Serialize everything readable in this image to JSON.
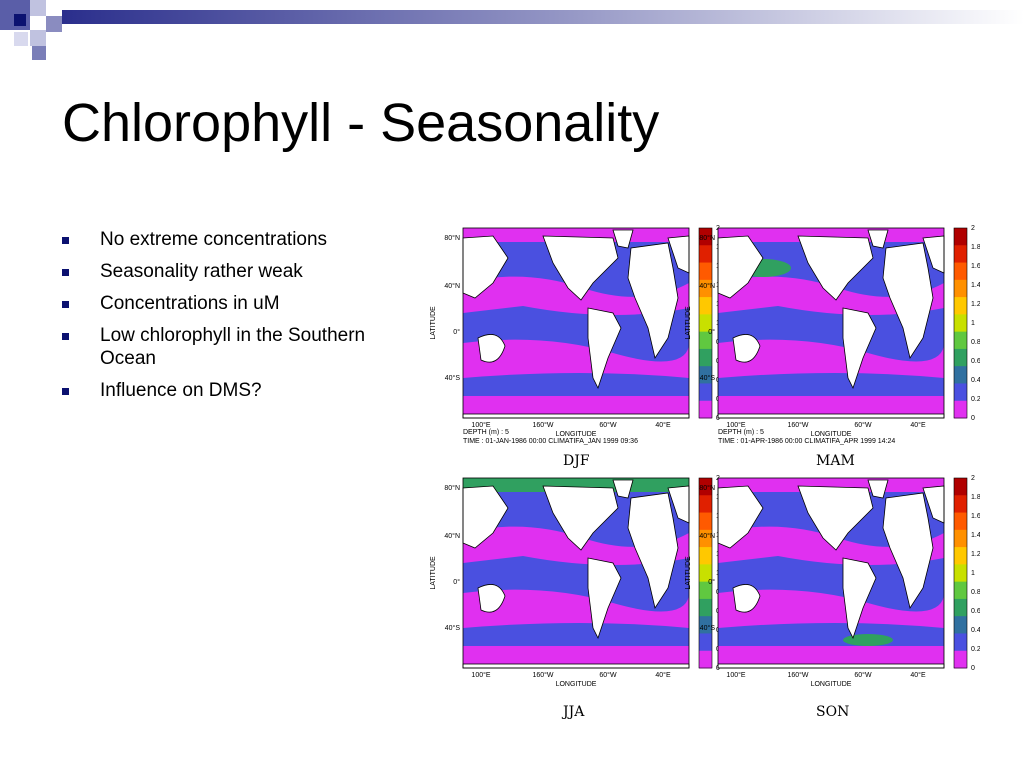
{
  "slide": {
    "title": "Chlorophyll - Seasonality",
    "bullets": [
      "No extreme concentrations",
      "Seasonality rather weak",
      "Concentrations in uM",
      "Low chlorophyll in the Southern Ocean",
      "Influence on DMS?"
    ]
  },
  "figure": {
    "lat_ticks": [
      "80°N",
      "40°N",
      "0°",
      "40°S"
    ],
    "lon_ticks": [
      "100°E",
      "160°W",
      "60°W",
      "40°E"
    ],
    "xlabel": "LONGITUDE",
    "ylabel": "LATITUDE",
    "colorbar_ticks": [
      "2",
      "1.8",
      "1.6",
      "1.4",
      "1.2",
      "1",
      "0.8",
      "0.6",
      "0.4",
      "0.2",
      "0"
    ],
    "colorbar_colors": [
      "#b00000",
      "#e02000",
      "#ff5a00",
      "#ff9000",
      "#ffc800",
      "#c8e000",
      "#60c840",
      "#30a060",
      "#3070a0",
      "#4a50e0",
      "#e030f0"
    ],
    "depth_text": "DEPTH (m) : 5",
    "panels": [
      {
        "season": "DJF",
        "time_text": "TIME : 01-JAN-1986 00:00 CLIMATIFA_JAN 1999 09:36"
      },
      {
        "season": "MAM",
        "time_text": "TIME : 01-APR-1986 00:00 CLIMATIFA_APR 1999 14:24"
      },
      {
        "season": "JJA",
        "time_text": ""
      },
      {
        "season": "SON",
        "time_text": ""
      }
    ]
  },
  "colors": {
    "ocean_low": "#e030f0",
    "ocean_mid": "#4a50e0",
    "ocean_green": "#30a060",
    "land": "#ffffff",
    "accent": "#0b1170"
  }
}
